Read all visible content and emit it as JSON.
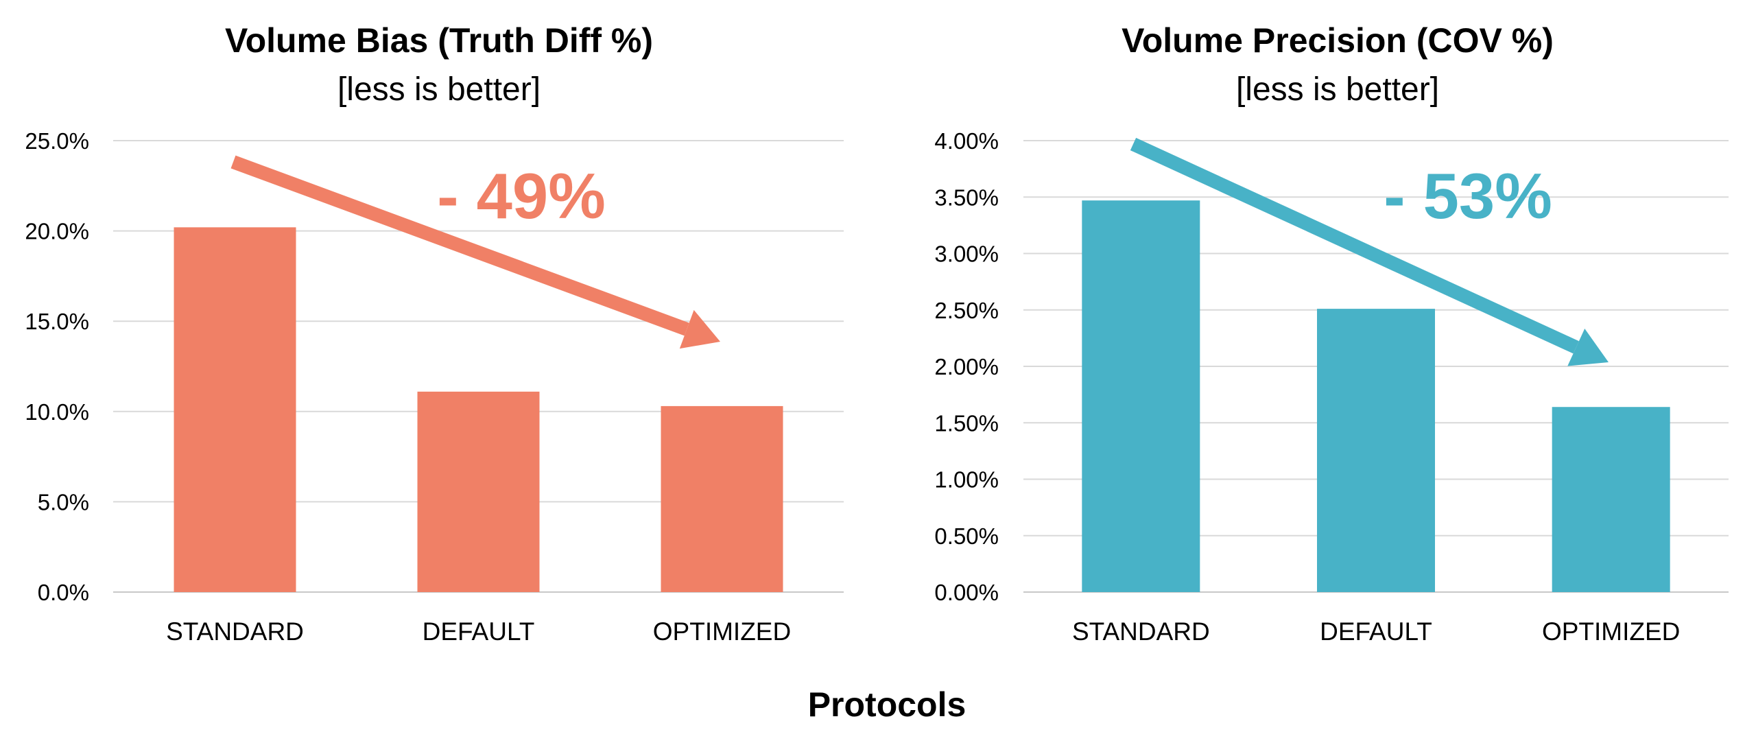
{
  "chart_data": [
    {
      "type": "bar",
      "title": "Volume Bias (Truth Diff %)",
      "subtitle": "[less is better]",
      "categories": [
        "STANDARD",
        "DEFAULT",
        "OPTIMIZED"
      ],
      "values": [
        20.2,
        11.1,
        10.3
      ],
      "yticks": [
        "0.0%",
        "5.0%",
        "10.0%",
        "15.0%",
        "20.0%",
        "25.0%"
      ],
      "ylim": [
        0,
        25
      ],
      "grid": true,
      "color": "#F08066",
      "annotation": "- 49%"
    },
    {
      "type": "bar",
      "title": "Volume Precision (COV %)",
      "subtitle": "[less is better]",
      "categories": [
        "STANDARD",
        "DEFAULT",
        "OPTIMIZED"
      ],
      "values": [
        3.47,
        2.51,
        1.64
      ],
      "yticks": [
        "0.00%",
        "0.50%",
        "1.00%",
        "1.50%",
        "2.00%",
        "2.50%",
        "3.00%",
        "3.50%",
        "4.00%"
      ],
      "ylim": [
        0,
        4
      ],
      "grid": true,
      "color": "#48B2C7",
      "annotation": "- 53%"
    }
  ],
  "xlabel": "Protocols"
}
